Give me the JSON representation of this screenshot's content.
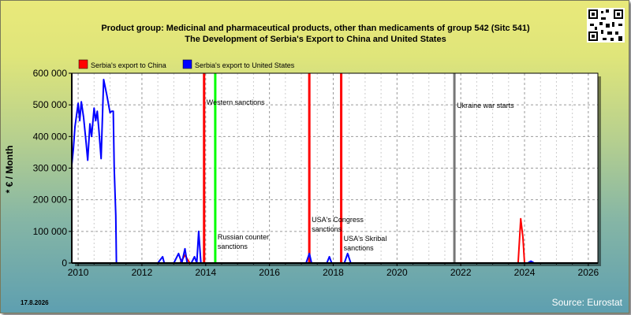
{
  "header": {
    "title_line1": "Product group: Medicinal and pharmaceutical products, other than medicaments of group 542 (Sitc 541)",
    "title_line2": "The Development of Serbia's Export to  China and United States"
  },
  "footer": {
    "date": "17.8.2026",
    "source": "Source: Eurostat"
  },
  "chart_data": {
    "type": "line",
    "ylabel": "* € / Month",
    "ylim": [
      0,
      600000
    ],
    "xlim": [
      2009.8,
      2026.3
    ],
    "y_ticks": [
      0,
      100000,
      200000,
      300000,
      400000,
      500000,
      600000
    ],
    "y_tick_labels": [
      "0",
      "100 000",
      "200 000",
      "300 000",
      "400 000",
      "500 000",
      "600 000"
    ],
    "x_ticks": [
      2010,
      2012,
      2014,
      2016,
      2018,
      2020,
      2022,
      2024,
      2026
    ],
    "x_tick_labels": [
      "2010",
      "2012",
      "2014",
      "2016",
      "2018",
      "2020",
      "2022",
      "2024",
      "2026"
    ],
    "grid": true,
    "legend_position": "top-left",
    "colors": {
      "china": "#ff0000",
      "usa": "#0000ff"
    },
    "series": [
      {
        "name": "Serbia's export to China",
        "color": "#ff0000",
        "points": [
          [
            2013.2,
            0
          ],
          [
            2013.35,
            25000
          ],
          [
            2013.5,
            0
          ],
          [
            2023.8,
            0
          ],
          [
            2023.88,
            140000
          ],
          [
            2023.95,
            80000
          ],
          [
            2024.0,
            0
          ],
          [
            2026.3,
            0
          ]
        ]
      },
      {
        "name": "Serbia's export to United States",
        "color": "#0000ff",
        "points": [
          [
            2009.8,
            310000
          ],
          [
            2009.85,
            360000
          ],
          [
            2009.9,
            430000
          ],
          [
            2010.0,
            505000
          ],
          [
            2010.05,
            450000
          ],
          [
            2010.1,
            510000
          ],
          [
            2010.17,
            460000
          ],
          [
            2010.25,
            380000
          ],
          [
            2010.3,
            325000
          ],
          [
            2010.37,
            440000
          ],
          [
            2010.42,
            400000
          ],
          [
            2010.5,
            490000
          ],
          [
            2010.55,
            450000
          ],
          [
            2010.6,
            480000
          ],
          [
            2010.65,
            420000
          ],
          [
            2010.72,
            330000
          ],
          [
            2010.8,
            580000
          ],
          [
            2010.9,
            530000
          ],
          [
            2011.0,
            475000
          ],
          [
            2011.05,
            480000
          ],
          [
            2011.1,
            480000
          ],
          [
            2011.13,
            300000
          ],
          [
            2011.18,
            150000
          ],
          [
            2011.2,
            0
          ],
          [
            2012.5,
            0
          ],
          [
            2012.65,
            20000
          ],
          [
            2012.7,
            0
          ],
          [
            2013.0,
            0
          ],
          [
            2013.15,
            30000
          ],
          [
            2013.25,
            0
          ],
          [
            2013.35,
            45000
          ],
          [
            2013.42,
            0
          ],
          [
            2013.55,
            0
          ],
          [
            2013.65,
            20000
          ],
          [
            2013.72,
            0
          ],
          [
            2013.78,
            100000
          ],
          [
            2013.85,
            0
          ],
          [
            2017.15,
            0
          ],
          [
            2017.25,
            30000
          ],
          [
            2017.32,
            0
          ],
          [
            2017.8,
            0
          ],
          [
            2017.88,
            20000
          ],
          [
            2017.95,
            0
          ],
          [
            2018.35,
            0
          ],
          [
            2018.45,
            30000
          ],
          [
            2018.55,
            0
          ],
          [
            2024.1,
            0
          ],
          [
            2024.2,
            6000
          ],
          [
            2024.3,
            0
          ],
          [
            2026.3,
            0
          ]
        ]
      }
    ],
    "events": [
      {
        "year": 2013.95,
        "color": "#ff0000",
        "label_lines": [
          "Western sanctions"
        ],
        "label_y": 500000
      },
      {
        "year": 2014.3,
        "color": "#00ff00",
        "label_lines": [
          "Russian counter",
          "sanctions"
        ],
        "label_y": 75000
      },
      {
        "year": 2017.25,
        "color": "#ff0000",
        "label_lines": [
          "USA's Congress",
          "sanctions"
        ],
        "label_y": 130000
      },
      {
        "year": 2018.25,
        "color": "#ff0000",
        "label_lines": [
          "USA's Skribal",
          "sanctions"
        ],
        "label_y": 70000
      },
      {
        "year": 2021.8,
        "color": "#777777",
        "label_lines": [
          "Ukraine war starts"
        ],
        "label_y": 490000
      }
    ]
  }
}
